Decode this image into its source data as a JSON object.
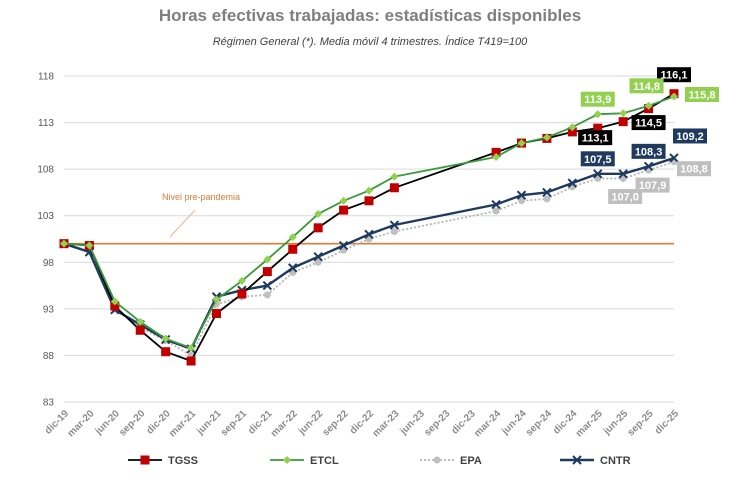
{
  "chart_data": {
    "type": "line",
    "title": "Horas efectivas trabajadas: estadísticas disponibles",
    "subtitle": "Régimen General (*). Media móvil 4 trimestres. Índice T419=100",
    "x": [
      "dic-19",
      "mar-20",
      "jun-20",
      "sep-20",
      "dic-20",
      "mar-21",
      "jun-21",
      "sep-21",
      "dic-21",
      "mar-22",
      "jun-22",
      "sep-22",
      "dic-22",
      "mar-23",
      "jun-23",
      "sep-23",
      "dic-23",
      "mar-24",
      "jun-24",
      "sep-24",
      "dic-24",
      "mar-25",
      "jun-25",
      "sep-25",
      "dic-25"
    ],
    "ylim": [
      83,
      118
    ],
    "yticks": [
      83,
      88,
      93,
      98,
      103,
      108,
      113,
      118
    ],
    "grid": true,
    "legend_position": "bottom",
    "series": [
      {
        "name": "TGSS",
        "color": "#000000",
        "marker": "square",
        "marker_color": "#c00000",
        "dash": "solid",
        "values": [
          100.0,
          99.8,
          93.3,
          90.7,
          88.4,
          87.4,
          92.5,
          94.6,
          97.0,
          99.4,
          101.7,
          103.6,
          104.6,
          106.0,
          null,
          null,
          null,
          109.8,
          110.8,
          111.3,
          112.0,
          112.4,
          113.1,
          114.5,
          116.1
        ]
      },
      {
        "name": "ETCL",
        "color": "#3a9a3a",
        "marker": "diamond",
        "marker_color": "#92d050",
        "dash": "solid",
        "values": [
          100.0,
          99.8,
          93.8,
          91.6,
          89.8,
          88.8,
          94.0,
          96.0,
          98.3,
          100.7,
          103.2,
          104.6,
          105.7,
          107.2,
          null,
          null,
          null,
          109.3,
          110.8,
          111.4,
          112.5,
          113.9,
          114.0,
          114.8,
          115.8
        ]
      },
      {
        "name": "EPA",
        "color": "#b4b4b4",
        "marker": "circle",
        "marker_color": "#bfbfbf",
        "dash": "dotted",
        "values": [
          100.0,
          99.2,
          93.0,
          91.0,
          89.6,
          88.0,
          93.5,
          94.3,
          94.5,
          96.9,
          98.0,
          99.3,
          100.5,
          101.3,
          null,
          null,
          null,
          103.5,
          104.6,
          104.8,
          106.1,
          107.0,
          107.0,
          107.9,
          108.8
        ]
      },
      {
        "name": "CNTR",
        "color": "#1f3a5f",
        "marker": "x",
        "marker_color": "#1f3a5f",
        "dash": "solid",
        "values": [
          100.0,
          99.1,
          92.9,
          91.3,
          89.7,
          88.7,
          94.3,
          95.0,
          95.5,
          97.4,
          98.6,
          99.8,
          101.0,
          102.0,
          null,
          null,
          null,
          104.2,
          105.2,
          105.5,
          106.5,
          107.5,
          107.5,
          108.3,
          109.2
        ]
      }
    ],
    "reference_line": {
      "label": "Nivel pre-pandemia",
      "value": 100,
      "color": "#e07b39"
    },
    "data_labels": [
      {
        "text": "116,1",
        "series": "TGSS",
        "index": 24,
        "bg": "#000000"
      },
      {
        "text": "114,5",
        "series": "TGSS",
        "index": 23,
        "bg": "#000000"
      },
      {
        "text": "113,1",
        "series": "TGSS",
        "index": 22,
        "bg": "#000000"
      },
      {
        "text": "113,9",
        "series": "ETCL",
        "index": 21,
        "bg": "#92d050"
      },
      {
        "text": "114,8",
        "series": "ETCL",
        "index": 23,
        "bg": "#92d050"
      },
      {
        "text": "115,8",
        "series": "ETCL",
        "index": 24,
        "bg": "#92d050"
      },
      {
        "text": "107,5",
        "series": "CNTR",
        "index": 21,
        "bg": "#1f3a5f"
      },
      {
        "text": "108,3",
        "series": "CNTR",
        "index": 23,
        "bg": "#1f3a5f"
      },
      {
        "text": "109,2",
        "series": "CNTR",
        "index": 24,
        "bg": "#1f3a5f"
      },
      {
        "text": "107,0",
        "series": "EPA",
        "index": 22,
        "bg": "#bfbfbf"
      },
      {
        "text": "107,9",
        "series": "EPA",
        "index": 23,
        "bg": "#bfbfbf"
      },
      {
        "text": "108,8",
        "series": "EPA",
        "index": 24,
        "bg": "#bfbfbf"
      }
    ]
  }
}
